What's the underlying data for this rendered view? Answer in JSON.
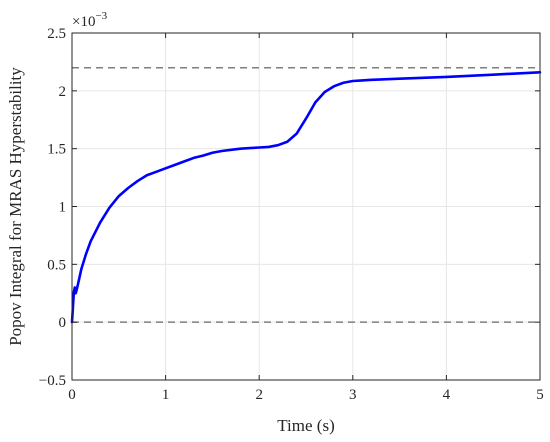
{
  "chart_data": {
    "type": "line",
    "title": "",
    "xlabel": "Time (s)",
    "ylabel": "Popov Integral for MRAS Hyperstability",
    "y_exponent_base": "×10",
    "y_exponent_power": "−3",
    "xlim": [
      0,
      5
    ],
    "ylim": [
      -0.5,
      2.5
    ],
    "x_ticks": [
      0,
      1,
      2,
      3,
      4,
      5
    ],
    "x_tick_labels": [
      "0",
      "1",
      "2",
      "3",
      "4",
      "5"
    ],
    "y_ticks": [
      -0.5,
      0,
      0.5,
      1,
      1.5,
      2,
      2.5
    ],
    "y_tick_labels": [
      "−0.5",
      "0",
      "0.5",
      "1",
      "1.5",
      "2",
      "2.5"
    ],
    "grid": true,
    "reference_lines": [
      {
        "y": 0,
        "style": "dashed",
        "color": "#7f7f7f"
      },
      {
        "y": 2.2,
        "style": "dashed",
        "color": "#7f7f7f"
      }
    ],
    "series": [
      {
        "color": "#0000ff",
        "x": [
          0,
          0.02,
          0.03,
          0.04,
          0.05,
          0.07,
          0.1,
          0.15,
          0.2,
          0.3,
          0.4,
          0.5,
          0.6,
          0.7,
          0.8,
          0.9,
          1.0,
          1.1,
          1.2,
          1.3,
          1.4,
          1.5,
          1.6,
          1.7,
          1.8,
          1.9,
          2.0,
          2.1,
          2.2,
          2.3,
          2.4,
          2.5,
          2.6,
          2.7,
          2.8,
          2.9,
          3.0,
          3.1,
          3.2,
          3.5,
          4.0,
          4.5,
          5.0
        ],
        "y": [
          0,
          0.26,
          0.3,
          0.25,
          0.28,
          0.35,
          0.46,
          0.59,
          0.7,
          0.86,
          0.99,
          1.09,
          1.16,
          1.22,
          1.27,
          1.3,
          1.33,
          1.36,
          1.39,
          1.42,
          1.44,
          1.465,
          1.48,
          1.49,
          1.5,
          1.505,
          1.51,
          1.515,
          1.53,
          1.56,
          1.63,
          1.76,
          1.9,
          1.99,
          2.04,
          2.07,
          2.085,
          2.09,
          2.095,
          2.105,
          2.12,
          2.14,
          2.16
        ]
      }
    ]
  }
}
